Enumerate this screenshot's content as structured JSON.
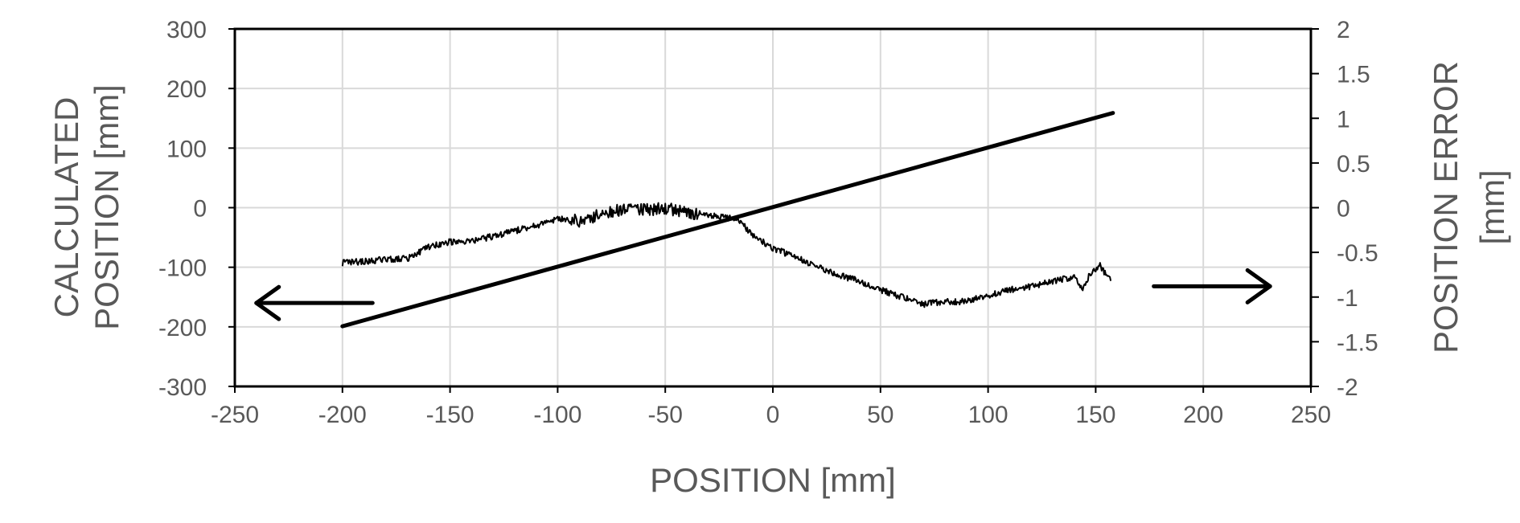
{
  "chart_data": {
    "type": "line",
    "title": "",
    "xlabel": "POSITION [mm]",
    "ylabel": "CALCULATED POSITION [mm]",
    "ylabel_lines": [
      "CALCULATED",
      "POSITION [mm]"
    ],
    "y2label": "POSITION ERROR [mm]",
    "y2label_lines": [
      "POSITION ERROR",
      "[mm]"
    ],
    "xlim": [
      -250,
      250
    ],
    "ylim": [
      -300,
      300
    ],
    "y2lim": [
      -2,
      2
    ],
    "xticks": [
      -250,
      -200,
      -150,
      -100,
      -50,
      0,
      50,
      100,
      150,
      200,
      250
    ],
    "yticks": [
      -300,
      -200,
      -100,
      0,
      100,
      200,
      300
    ],
    "y2ticks": [
      -2,
      -1.5,
      -1,
      -0.5,
      0,
      0.5,
      1,
      1.5,
      2
    ],
    "grid": true,
    "legend": "none",
    "series": [
      {
        "axis": "left",
        "color": "#000000",
        "x": [
          -200,
          158
        ],
        "y": [
          -199,
          159
        ]
      },
      {
        "axis": "right",
        "color": "#000000",
        "noisy": true,
        "x": [
          -200,
          -190,
          -180,
          -170,
          -160,
          -150,
          -140,
          -130,
          -120,
          -110,
          -100,
          -90,
          -80,
          -70,
          -60,
          -50,
          -40,
          -30,
          -20,
          -15,
          -10,
          0,
          10,
          20,
          30,
          40,
          50,
          60,
          70,
          80,
          90,
          100,
          110,
          120,
          130,
          140,
          144,
          148,
          152,
          157
        ],
        "y": [
          -0.62,
          -0.6,
          -0.58,
          -0.57,
          -0.44,
          -0.38,
          -0.38,
          -0.32,
          -0.26,
          -0.2,
          -0.12,
          -0.15,
          -0.08,
          -0.02,
          -0.02,
          -0.01,
          -0.05,
          -0.08,
          -0.12,
          -0.16,
          -0.3,
          -0.45,
          -0.55,
          -0.65,
          -0.75,
          -0.82,
          -0.92,
          -1.0,
          -1.08,
          -1.05,
          -1.05,
          -0.98,
          -0.92,
          -0.88,
          -0.82,
          -0.78,
          -0.9,
          -0.72,
          -0.65,
          -0.82
        ]
      }
    ],
    "annotations": [
      {
        "type": "arrow",
        "direction": "left",
        "x_from": -186,
        "x_to": -240,
        "y": -160,
        "axis": "left"
      },
      {
        "type": "arrow",
        "direction": "right",
        "x_from": 177,
        "x_to": 231,
        "y": -0.88,
        "axis": "right"
      }
    ]
  }
}
